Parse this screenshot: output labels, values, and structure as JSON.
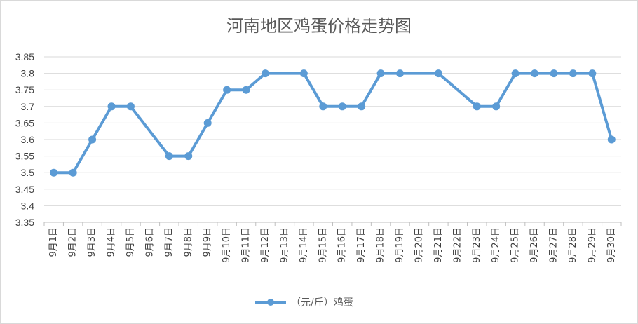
{
  "chart_data": {
    "type": "line",
    "title": "河南地区鸡蛋价格走势图",
    "xlabel": "",
    "ylabel": "",
    "ylim": [
      3.35,
      3.85
    ],
    "y_ticks": [
      "3.35",
      "3.4",
      "3.45",
      "3.5",
      "3.55",
      "3.6",
      "3.65",
      "3.7",
      "3.75",
      "3.8",
      "3.85"
    ],
    "categories": [
      "9月1日",
      "9月2日",
      "9月3日",
      "9月4日",
      "9月5日",
      "9月6日",
      "9月7日",
      "9月8日",
      "9月9日",
      "9月10日",
      "9月11日",
      "9月12日",
      "9月13日",
      "9月14日",
      "9月15日",
      "9月16日",
      "9月17日",
      "9月18日",
      "9月19日",
      "9月20日",
      "9月21日",
      "9月22日",
      "9月23日",
      "9月24日",
      "9月25日",
      "9月26日",
      "9月27日",
      "9月28日",
      "9月29日",
      "9月30日"
    ],
    "series": [
      {
        "name": "（元/斤）鸡蛋",
        "color": "#5b9bd5",
        "values": [
          3.5,
          3.5,
          3.6,
          3.7,
          3.7,
          null,
          3.55,
          3.55,
          3.65,
          3.75,
          3.75,
          3.8,
          null,
          3.8,
          3.7,
          3.7,
          3.7,
          3.8,
          3.8,
          null,
          3.8,
          null,
          3.7,
          3.7,
          3.8,
          3.8,
          3.8,
          3.8,
          3.8,
          3.6
        ]
      }
    ],
    "grid": true,
    "legend_position": "bottom"
  }
}
